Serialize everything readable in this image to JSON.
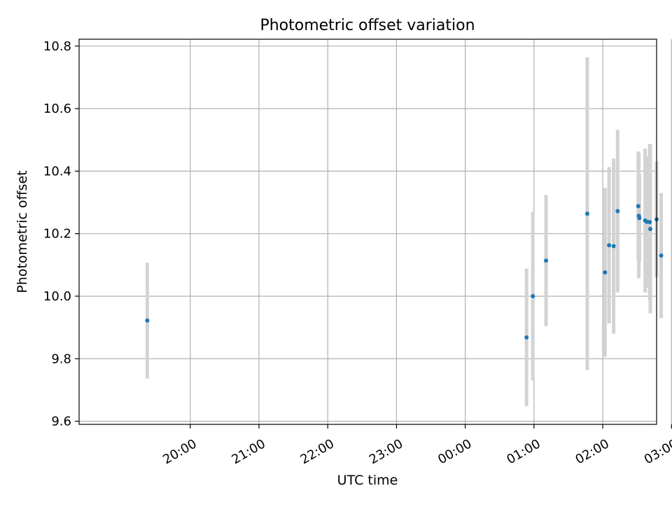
{
  "chart_data": {
    "type": "scatter",
    "title": "Photometric offset variation",
    "xlabel": "UTC time",
    "ylabel": "Photometric offset",
    "x_axis": {
      "unit": "minutes after 19:00 UTC",
      "range": [
        -37,
        467
      ],
      "ticks": [
        {
          "value": 60,
          "label": "20:00"
        },
        {
          "value": 120,
          "label": "21:00"
        },
        {
          "value": 180,
          "label": "22:00"
        },
        {
          "value": 240,
          "label": "23:00"
        },
        {
          "value": 300,
          "label": "00:00"
        },
        {
          "value": 360,
          "label": "01:00"
        },
        {
          "value": 420,
          "label": "02:00"
        },
        {
          "value": 480,
          "label": "03:00"
        }
      ]
    },
    "y_axis": {
      "range": [
        9.59,
        10.822
      ],
      "ticks": [
        {
          "value": 9.6,
          "label": "9.6"
        },
        {
          "value": 9.8,
          "label": "9.8"
        },
        {
          "value": 10.0,
          "label": "10.0"
        },
        {
          "value": 10.2,
          "label": "10.2"
        },
        {
          "value": 10.4,
          "label": "10.4"
        },
        {
          "value": 10.6,
          "label": "10.6"
        },
        {
          "value": 10.8,
          "label": "10.8"
        }
      ]
    },
    "grid": true,
    "point_color": "#1f77b4",
    "errorbar_color": "#d3d3d3",
    "points": [
      {
        "x": 22.5,
        "y": 9.922,
        "yerr": 0.185
      },
      {
        "x": 353.5,
        "y": 9.868,
        "yerr": 0.22
      },
      {
        "x": 359.0,
        "y": 10.0,
        "yerr": 0.27
      },
      {
        "x": 370.5,
        "y": 10.114,
        "yerr": 0.21
      },
      {
        "x": 406.5,
        "y": 10.264,
        "yerr": 0.5
      },
      {
        "x": 422.0,
        "y": 10.076,
        "yerr": 0.27
      },
      {
        "x": 425.5,
        "y": 10.163,
        "yerr": 0.25
      },
      {
        "x": 429.5,
        "y": 10.16,
        "yerr": 0.28
      },
      {
        "x": 433.0,
        "y": 10.272,
        "yerr": 0.26
      },
      {
        "x": 451.0,
        "y": 10.288,
        "yerr": 0.175
      },
      {
        "x": 451.5,
        "y": 10.257,
        "yerr": 0.2
      },
      {
        "x": 452.0,
        "y": 10.25,
        "yerr": 0.14
      },
      {
        "x": 457.0,
        "y": 10.242,
        "yerr": 0.23
      },
      {
        "x": 458.5,
        "y": 10.238,
        "yerr": 0.21
      },
      {
        "x": 461.0,
        "y": 10.237,
        "yerr": 0.25
      },
      {
        "x": 461.5,
        "y": 10.215,
        "yerr": 0.27
      },
      {
        "x": 467.0,
        "y": 10.246,
        "yerr": 0.185
      },
      {
        "x": 471.0,
        "y": 10.13,
        "yerr": 0.2
      }
    ]
  }
}
